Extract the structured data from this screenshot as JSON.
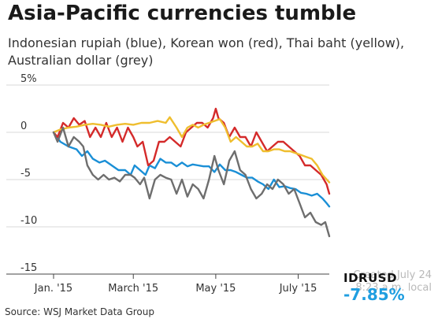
{
  "header": {
    "title": "Asia-Pacific currencies tumble",
    "subtitle": "Indonesian rupiah (blue), Korean won (red), Thai baht (yellow), Australian dollar (grey)"
  },
  "footer": {
    "source": "Source: WSJ Market Data Group",
    "created": "Created July 24 8:23 a.m. local"
  },
  "readout": {
    "ticker": "IDRUSD",
    "change": "-7.85%"
  },
  "colors": {
    "rupiah": "#1a8fd6",
    "won": "#d42a2a",
    "baht": "#efbe2e",
    "aud": "#6e6e6e",
    "grid": "#d8d8d8",
    "axis": "#444444",
    "accent": "#1f9ee0"
  },
  "chart_data": {
    "type": "line",
    "title": "Asia-Pacific currencies tumble",
    "subtitle": "Indonesian rupiah (blue), Korean won (red), Thai baht (yellow), Australian dollar (grey)",
    "xlabel": "",
    "ylabel": "",
    "x_range": [
      "2015-01-01",
      "2015-07-24"
    ],
    "ylim": [
      -15,
      5
    ],
    "y_ticks": [
      5,
      0,
      -5,
      -10,
      -15
    ],
    "y_tick_labels": [
      "5%",
      "0",
      "-5",
      "-10",
      "-15"
    ],
    "x_ticks": [
      "2015-01-01",
      "2015-03-01",
      "2015-05-01",
      "2015-07-01"
    ],
    "x_tick_labels": [
      "Jan. '15",
      "March '15",
      "May '15",
      "July '15"
    ],
    "grid": true,
    "legend": "none",
    "series": [
      {
        "name": "Indonesian rupiah",
        "color_key": "rupiah",
        "points": [
          [
            "2015-01-01",
            0.0
          ],
          [
            "2015-01-06",
            -1.0
          ],
          [
            "2015-01-12",
            -1.5
          ],
          [
            "2015-01-18",
            -1.8
          ],
          [
            "2015-01-22",
            -2.5
          ],
          [
            "2015-01-26",
            -2.0
          ],
          [
            "2015-01-30",
            -2.8
          ],
          [
            "2015-02-04",
            -3.2
          ],
          [
            "2015-02-08",
            -3.0
          ],
          [
            "2015-02-13",
            -3.5
          ],
          [
            "2015-02-18",
            -4.0
          ],
          [
            "2015-02-23",
            -4.0
          ],
          [
            "2015-02-27",
            -4.5
          ],
          [
            "2015-03-02",
            -3.5
          ],
          [
            "2015-03-06",
            -4.0
          ],
          [
            "2015-03-10",
            -4.5
          ],
          [
            "2015-03-13",
            -3.5
          ],
          [
            "2015-03-17",
            -3.8
          ],
          [
            "2015-03-21",
            -2.8
          ],
          [
            "2015-03-25",
            -3.2
          ],
          [
            "2015-03-29",
            -3.2
          ],
          [
            "2015-04-02",
            -3.6
          ],
          [
            "2015-04-06",
            -3.2
          ],
          [
            "2015-04-10",
            -3.6
          ],
          [
            "2015-04-14",
            -3.4
          ],
          [
            "2015-04-18",
            -3.5
          ],
          [
            "2015-04-22",
            -3.6
          ],
          [
            "2015-04-26",
            -3.6
          ],
          [
            "2015-04-30",
            -4.2
          ],
          [
            "2015-05-04",
            -3.4
          ],
          [
            "2015-05-08",
            -4.0
          ],
          [
            "2015-05-12",
            -4.0
          ],
          [
            "2015-05-16",
            -4.2
          ],
          [
            "2015-05-20",
            -4.5
          ],
          [
            "2015-05-24",
            -4.8
          ],
          [
            "2015-05-28",
            -4.8
          ],
          [
            "2015-06-01",
            -5.2
          ],
          [
            "2015-06-05",
            -5.5
          ],
          [
            "2015-06-09",
            -6.0
          ],
          [
            "2015-06-13",
            -5.0
          ],
          [
            "2015-06-17",
            -5.8
          ],
          [
            "2015-06-21",
            -5.7
          ],
          [
            "2015-06-25",
            -5.9
          ],
          [
            "2015-06-29",
            -6.0
          ],
          [
            "2015-07-03",
            -6.4
          ],
          [
            "2015-07-07",
            -6.5
          ],
          [
            "2015-07-11",
            -6.7
          ],
          [
            "2015-07-15",
            -6.5
          ],
          [
            "2015-07-19",
            -7.0
          ],
          [
            "2015-07-22",
            -7.5
          ],
          [
            "2015-07-24",
            -7.85
          ]
        ]
      },
      {
        "name": "Korean won",
        "color_key": "won",
        "points": [
          [
            "2015-01-01",
            0.0
          ],
          [
            "2015-01-04",
            -0.5
          ],
          [
            "2015-01-08",
            1.0
          ],
          [
            "2015-01-12",
            0.5
          ],
          [
            "2015-01-16",
            1.5
          ],
          [
            "2015-01-20",
            0.8
          ],
          [
            "2015-01-24",
            1.2
          ],
          [
            "2015-01-28",
            -0.5
          ],
          [
            "2015-02-01",
            0.5
          ],
          [
            "2015-02-05",
            -0.5
          ],
          [
            "2015-02-09",
            1.0
          ],
          [
            "2015-02-13",
            -0.5
          ],
          [
            "2015-02-17",
            0.5
          ],
          [
            "2015-02-21",
            -1.0
          ],
          [
            "2015-02-25",
            0.5
          ],
          [
            "2015-03-01",
            -0.5
          ],
          [
            "2015-03-04",
            -1.5
          ],
          [
            "2015-03-08",
            -1.0
          ],
          [
            "2015-03-12",
            -3.5
          ],
          [
            "2015-03-16",
            -3.0
          ],
          [
            "2015-03-20",
            -1.0
          ],
          [
            "2015-03-24",
            -1.0
          ],
          [
            "2015-03-28",
            -0.5
          ],
          [
            "2015-04-01",
            -1.0
          ],
          [
            "2015-04-05",
            -1.5
          ],
          [
            "2015-04-09",
            0.0
          ],
          [
            "2015-04-13",
            0.5
          ],
          [
            "2015-04-17",
            1.0
          ],
          [
            "2015-04-21",
            1.0
          ],
          [
            "2015-04-25",
            0.5
          ],
          [
            "2015-04-29",
            1.5
          ],
          [
            "2015-05-01",
            2.5
          ],
          [
            "2015-05-03",
            1.5
          ],
          [
            "2015-05-07",
            1.0
          ],
          [
            "2015-05-11",
            -0.5
          ],
          [
            "2015-05-15",
            0.5
          ],
          [
            "2015-05-19",
            -0.5
          ],
          [
            "2015-05-23",
            -0.5
          ],
          [
            "2015-05-27",
            -1.5
          ],
          [
            "2015-05-31",
            0.0
          ],
          [
            "2015-06-04",
            -1.0
          ],
          [
            "2015-06-08",
            -2.0
          ],
          [
            "2015-06-12",
            -1.5
          ],
          [
            "2015-06-16",
            -1.0
          ],
          [
            "2015-06-20",
            -1.0
          ],
          [
            "2015-06-24",
            -1.5
          ],
          [
            "2015-06-28",
            -2.0
          ],
          [
            "2015-07-02",
            -2.5
          ],
          [
            "2015-07-06",
            -3.5
          ],
          [
            "2015-07-10",
            -3.5
          ],
          [
            "2015-07-14",
            -4.0
          ],
          [
            "2015-07-18",
            -4.5
          ],
          [
            "2015-07-22",
            -5.5
          ],
          [
            "2015-07-24",
            -6.5
          ]
        ]
      },
      {
        "name": "Thai baht",
        "color_key": "baht",
        "points": [
          [
            "2015-01-01",
            0.0
          ],
          [
            "2015-01-06",
            0.3
          ],
          [
            "2015-01-12",
            0.5
          ],
          [
            "2015-01-18",
            0.6
          ],
          [
            "2015-01-24",
            0.8
          ],
          [
            "2015-01-30",
            0.9
          ],
          [
            "2015-02-05",
            0.8
          ],
          [
            "2015-02-11",
            0.6
          ],
          [
            "2015-02-17",
            0.8
          ],
          [
            "2015-02-23",
            0.9
          ],
          [
            "2015-03-01",
            0.8
          ],
          [
            "2015-03-07",
            1.0
          ],
          [
            "2015-03-13",
            1.0
          ],
          [
            "2015-03-19",
            1.2
          ],
          [
            "2015-03-25",
            1.0
          ],
          [
            "2015-03-28",
            1.6
          ],
          [
            "2015-04-02",
            0.5
          ],
          [
            "2015-04-06",
            -0.5
          ],
          [
            "2015-04-10",
            0.5
          ],
          [
            "2015-04-14",
            0.8
          ],
          [
            "2015-04-18",
            0.5
          ],
          [
            "2015-04-22",
            0.8
          ],
          [
            "2015-04-26",
            1.0
          ],
          [
            "2015-04-30",
            1.2
          ],
          [
            "2015-05-04",
            1.4
          ],
          [
            "2015-05-08",
            0.5
          ],
          [
            "2015-05-12",
            -1.0
          ],
          [
            "2015-05-16",
            -0.5
          ],
          [
            "2015-05-20",
            -1.0
          ],
          [
            "2015-05-24",
            -1.5
          ],
          [
            "2015-05-28",
            -1.5
          ],
          [
            "2015-06-01",
            -1.2
          ],
          [
            "2015-06-05",
            -2.0
          ],
          [
            "2015-06-09",
            -2.0
          ],
          [
            "2015-06-13",
            -1.8
          ],
          [
            "2015-06-17",
            -1.8
          ],
          [
            "2015-06-21",
            -2.0
          ],
          [
            "2015-06-25",
            -2.0
          ],
          [
            "2015-06-29",
            -2.2
          ],
          [
            "2015-07-03",
            -2.4
          ],
          [
            "2015-07-07",
            -2.6
          ],
          [
            "2015-07-11",
            -2.8
          ],
          [
            "2015-07-15",
            -3.5
          ],
          [
            "2015-07-19",
            -4.5
          ],
          [
            "2015-07-24",
            -5.3
          ]
        ]
      },
      {
        "name": "Australian dollar",
        "color_key": "aud",
        "points": [
          [
            "2015-01-01",
            0.0
          ],
          [
            "2015-01-04",
            -1.0
          ],
          [
            "2015-01-08",
            0.5
          ],
          [
            "2015-01-12",
            -1.5
          ],
          [
            "2015-01-16",
            -0.5
          ],
          [
            "2015-01-20",
            -1.0
          ],
          [
            "2015-01-23",
            -1.5
          ],
          [
            "2015-01-26",
            -3.5
          ],
          [
            "2015-01-30",
            -4.5
          ],
          [
            "2015-02-03",
            -5.0
          ],
          [
            "2015-02-07",
            -4.5
          ],
          [
            "2015-02-11",
            -5.0
          ],
          [
            "2015-02-15",
            -4.8
          ],
          [
            "2015-02-19",
            -5.2
          ],
          [
            "2015-02-23",
            -4.5
          ],
          [
            "2015-02-27",
            -4.5
          ],
          [
            "2015-03-02",
            -4.8
          ],
          [
            "2015-03-06",
            -5.5
          ],
          [
            "2015-03-09",
            -4.8
          ],
          [
            "2015-03-13",
            -7.0
          ],
          [
            "2015-03-17",
            -5.0
          ],
          [
            "2015-03-21",
            -4.5
          ],
          [
            "2015-03-25",
            -4.8
          ],
          [
            "2015-03-29",
            -5.0
          ],
          [
            "2015-04-02",
            -6.5
          ],
          [
            "2015-04-06",
            -5.0
          ],
          [
            "2015-04-10",
            -6.8
          ],
          [
            "2015-04-14",
            -5.5
          ],
          [
            "2015-04-18",
            -6.0
          ],
          [
            "2015-04-22",
            -7.0
          ],
          [
            "2015-04-26",
            -5.0
          ],
          [
            "2015-04-30",
            -2.5
          ],
          [
            "2015-05-03",
            -4.0
          ],
          [
            "2015-05-07",
            -5.5
          ],
          [
            "2015-05-11",
            -3.0
          ],
          [
            "2015-05-15",
            -2.0
          ],
          [
            "2015-05-19",
            -4.0
          ],
          [
            "2015-05-23",
            -4.5
          ],
          [
            "2015-05-27",
            -6.0
          ],
          [
            "2015-05-31",
            -7.0
          ],
          [
            "2015-06-04",
            -6.5
          ],
          [
            "2015-06-08",
            -5.5
          ],
          [
            "2015-06-12",
            -6.0
          ],
          [
            "2015-06-16",
            -5.0
          ],
          [
            "2015-06-20",
            -5.5
          ],
          [
            "2015-06-24",
            -6.5
          ],
          [
            "2015-06-28",
            -6.0
          ],
          [
            "2015-07-02",
            -7.5
          ],
          [
            "2015-07-06",
            -9.0
          ],
          [
            "2015-07-10",
            -8.5
          ],
          [
            "2015-07-14",
            -9.5
          ],
          [
            "2015-07-18",
            -9.8
          ],
          [
            "2015-07-21",
            -9.5
          ],
          [
            "2015-07-24",
            -11.0
          ]
        ]
      }
    ]
  }
}
